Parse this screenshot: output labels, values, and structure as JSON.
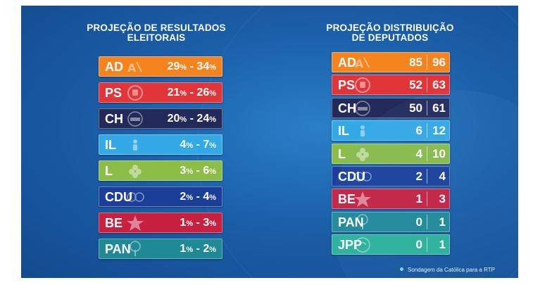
{
  "left_panel": {
    "title_line1": "PROJEÇÃO DE RESULTADOS",
    "title_line2": "ELEITORAIS",
    "rows": [
      {
        "party": "AD",
        "min": "29",
        "max": "34",
        "color": "#f5841f",
        "logo": "ad-logo-icon"
      },
      {
        "party": "PS",
        "min": "21",
        "max": "26",
        "color": "#e2353a",
        "logo": "ps-fist-rose-icon"
      },
      {
        "party": "CH",
        "min": "20",
        "max": "24",
        "color": "#232a59",
        "logo": "chega-logo-icon"
      },
      {
        "party": "IL",
        "min": "4",
        "max": "7",
        "color": "#33a9e6",
        "logo": "il-person-icon"
      },
      {
        "party": "L",
        "min": "3",
        "max": "6",
        "color": "#8cbd47",
        "logo": "livre-flower-icon"
      },
      {
        "party": "CDU",
        "min": "2",
        "max": "4",
        "color": "#1b3f99",
        "logo": "cdu-logo-icon"
      },
      {
        "party": "BE",
        "min": "1",
        "max": "3",
        "color": "#c8203f",
        "logo": "be-star-icon"
      },
      {
        "party": "PAN",
        "min": "1",
        "max": "2",
        "color": "#1f8a96",
        "logo": "pan-tree-icon"
      }
    ],
    "percent_sign": "%",
    "separator": " - "
  },
  "right_panel": {
    "title_line1": "PROJEÇÃO DISTRIBUIÇÃO",
    "title_line2": "DE DEPUTADOS",
    "rows": [
      {
        "party": "AD",
        "min": "85",
        "max": "96",
        "color": "#f5841f",
        "logo": "ad-logo-icon"
      },
      {
        "party": "PS",
        "min": "52",
        "max": "63",
        "color": "#e2353a",
        "logo": "ps-fist-rose-icon"
      },
      {
        "party": "CH",
        "min": "50",
        "max": "61",
        "color": "#232a59",
        "logo": "chega-logo-icon"
      },
      {
        "party": "IL",
        "min": "6",
        "max": "12",
        "color": "#33a9e6",
        "logo": "il-person-icon"
      },
      {
        "party": "L",
        "min": "4",
        "max": "10",
        "color": "#8cbd47",
        "logo": "livre-flower-icon"
      },
      {
        "party": "CDU",
        "min": "2",
        "max": "4",
        "color": "#1b3f99",
        "logo": "cdu-logo-icon"
      },
      {
        "party": "BE",
        "min": "1",
        "max": "3",
        "color": "#c8203f",
        "logo": "be-star-icon"
      },
      {
        "party": "PAN",
        "min": "0",
        "max": "1",
        "color": "#1f8a96",
        "logo": "pan-tree-icon"
      },
      {
        "party": "JPP",
        "min": "0",
        "max": "1",
        "color": "#2bb39a",
        "logo": "jpp-logo-icon"
      }
    ]
  },
  "footer": {
    "source": "Sondagem da Católica para a RTP"
  }
}
